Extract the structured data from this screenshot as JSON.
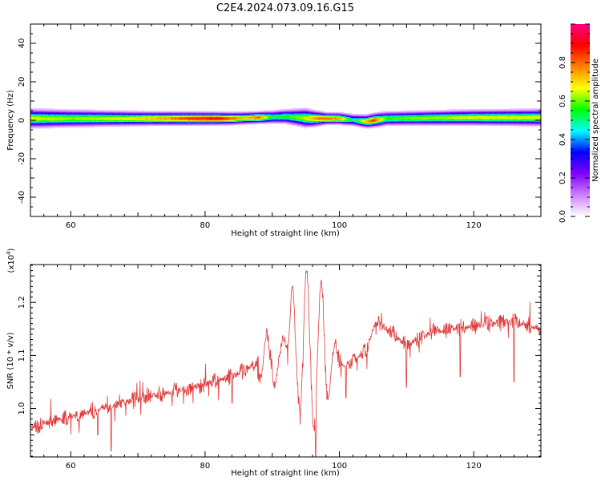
{
  "figure_title": "C2E4.2024.073.09.16.G15",
  "chart_data": [
    {
      "type": "heatmap",
      "xlabel": "Height of straight line (km)",
      "ylabel": "Frequency (Hz)",
      "xlim": [
        54,
        130
      ],
      "ylim": [
        -50,
        50
      ],
      "x_ticks": [
        60,
        80,
        100,
        120
      ],
      "y_ticks": [
        -40,
        -20,
        0,
        20,
        40
      ],
      "colorbar": {
        "label": "Normalized spectral amplitude",
        "range": [
          0,
          1
        ],
        "ticks": [
          "0.0",
          "0.2",
          "0.4",
          "0.6",
          "0.8"
        ],
        "colors": [
          "#ffffff",
          "#cc80ff",
          "#8000ff",
          "#0000ff",
          "#00ffff",
          "#00ff00",
          "#ffff00",
          "#ff8000",
          "#ff0000",
          "#ff0080"
        ]
      },
      "band": {
        "center_hz": [
          [
            54,
            1
          ],
          [
            70,
            1
          ],
          [
            84,
            1
          ],
          [
            88,
            1.5
          ],
          [
            92,
            2
          ],
          [
            96,
            1
          ],
          [
            100,
            1
          ],
          [
            104,
            -0.5
          ],
          [
            107,
            1
          ],
          [
            120,
            1.5
          ],
          [
            130,
            1.5
          ]
        ],
        "peak_amplitude": [
          [
            54,
            0.7
          ],
          [
            60,
            0.65
          ],
          [
            68,
            0.7
          ],
          [
            74,
            0.8
          ],
          [
            78,
            0.9
          ],
          [
            82,
            0.95
          ],
          [
            86,
            0.75
          ],
          [
            88,
            0.85
          ],
          [
            90,
            0.55
          ],
          [
            93,
            0.6
          ],
          [
            95,
            0.7
          ],
          [
            97,
            0.85
          ],
          [
            100,
            0.8
          ],
          [
            102,
            0.5
          ],
          [
            105,
            0.9
          ],
          [
            107,
            0.6
          ],
          [
            112,
            0.65
          ],
          [
            120,
            0.7
          ],
          [
            130,
            0.7
          ]
        ],
        "half_width_hz": [
          [
            54,
            4
          ],
          [
            70,
            3
          ],
          [
            88,
            2.5
          ],
          [
            92,
            3
          ],
          [
            95,
            4
          ],
          [
            98,
            2.5
          ],
          [
            102,
            2.5
          ],
          [
            106,
            3
          ],
          [
            110,
            3
          ],
          [
            130,
            3.5
          ]
        ]
      }
    },
    {
      "type": "line",
      "xlabel": "Height of straight line (km)",
      "ylabel": "SNR (10 * v/v)",
      "y_multiplier": "(x10",
      "y_multiplier_exponent": "4",
      "y_multiplier_close": ")",
      "xlim": [
        54,
        130
      ],
      "ylim": [
        0.9086,
        1.2714
      ],
      "x_ticks": [
        60,
        80,
        100,
        120
      ],
      "y_ticks": [
        "1.0",
        "1.1",
        "1.2"
      ],
      "series_color": "#e03c3c",
      "trend": [
        [
          54,
          0.965
        ],
        [
          60,
          0.985
        ],
        [
          66,
          1.005
        ],
        [
          72,
          1.025
        ],
        [
          78,
          1.04
        ],
        [
          84,
          1.06
        ],
        [
          87,
          1.08
        ],
        [
          89,
          1.09
        ],
        [
          91,
          1.1
        ],
        [
          93,
          1.1
        ],
        [
          98,
          1.1
        ],
        [
          101,
          1.08
        ],
        [
          104,
          1.11
        ],
        [
          105.5,
          1.17
        ],
        [
          107,
          1.15
        ],
        [
          110,
          1.12
        ],
        [
          114,
          1.145
        ],
        [
          120,
          1.155
        ],
        [
          126,
          1.165
        ],
        [
          130,
          1.15
        ]
      ],
      "oscillations": [
        {
          "x": 88.2,
          "amp": -0.03
        },
        {
          "x": 89.2,
          "amp": 0.05
        },
        {
          "x": 90.4,
          "amp": -0.055
        },
        {
          "x": 91.6,
          "amp": 0.03
        },
        {
          "x": 93.0,
          "amp": 0.13
        },
        {
          "x": 94.1,
          "amp": -0.11
        },
        {
          "x": 95.1,
          "amp": 0.165
        },
        {
          "x": 96.2,
          "amp": -0.14
        },
        {
          "x": 97.3,
          "amp": 0.145
        },
        {
          "x": 98.3,
          "amp": -0.085
        },
        {
          "x": 99.4,
          "amp": 0.03
        }
      ],
      "deep_dips": [
        [
          64,
          0.95
        ],
        [
          66,
          0.92
        ],
        [
          84,
          1.01
        ],
        [
          96.5,
          0.91
        ],
        [
          101,
          1.02
        ],
        [
          110,
          1.04
        ],
        [
          118,
          1.06
        ],
        [
          126,
          1.05
        ]
      ],
      "noise_amplitude": 0.011
    }
  ]
}
